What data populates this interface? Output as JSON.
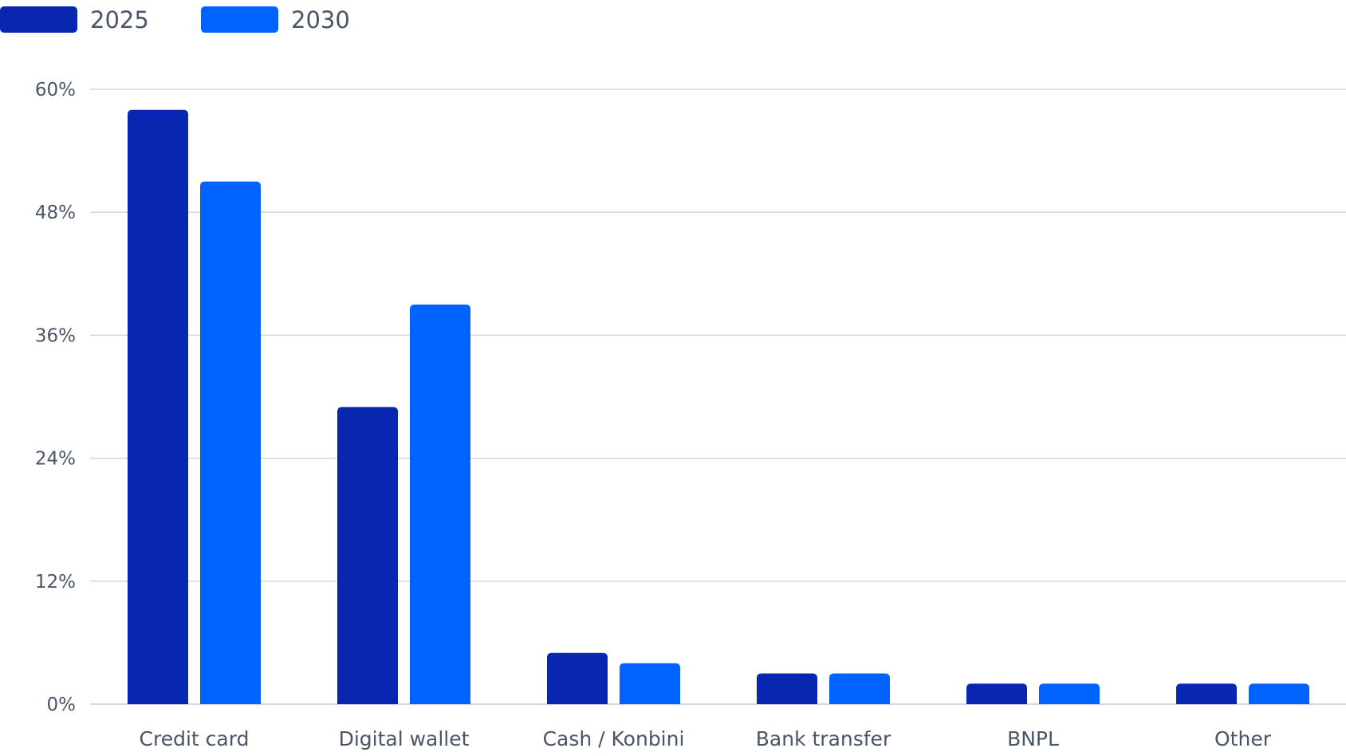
{
  "colors": {
    "series_2025": "#0826b0",
    "series_2030": "#0062ff",
    "grid": "#d3d6dd",
    "text": "#4a5568"
  },
  "chart_data": {
    "type": "bar",
    "categories": [
      "Credit card",
      "Digital wallet",
      "Cash / Konbini",
      "Bank transfer",
      "BNPL",
      "Other"
    ],
    "series": [
      {
        "name": "2025",
        "values": [
          58,
          29,
          5,
          3,
          2,
          2
        ]
      },
      {
        "name": "2030",
        "values": [
          51,
          39,
          4,
          3,
          2,
          2
        ]
      }
    ],
    "yticks": [
      "0%",
      "12%",
      "24%",
      "36%",
      "48%",
      "60%"
    ],
    "ytick_values": [
      0,
      12,
      24,
      36,
      48,
      60
    ],
    "ylim": [
      0,
      60
    ],
    "title": "",
    "xlabel": "",
    "ylabel": "",
    "grid": true,
    "legend_position": "top-left"
  }
}
